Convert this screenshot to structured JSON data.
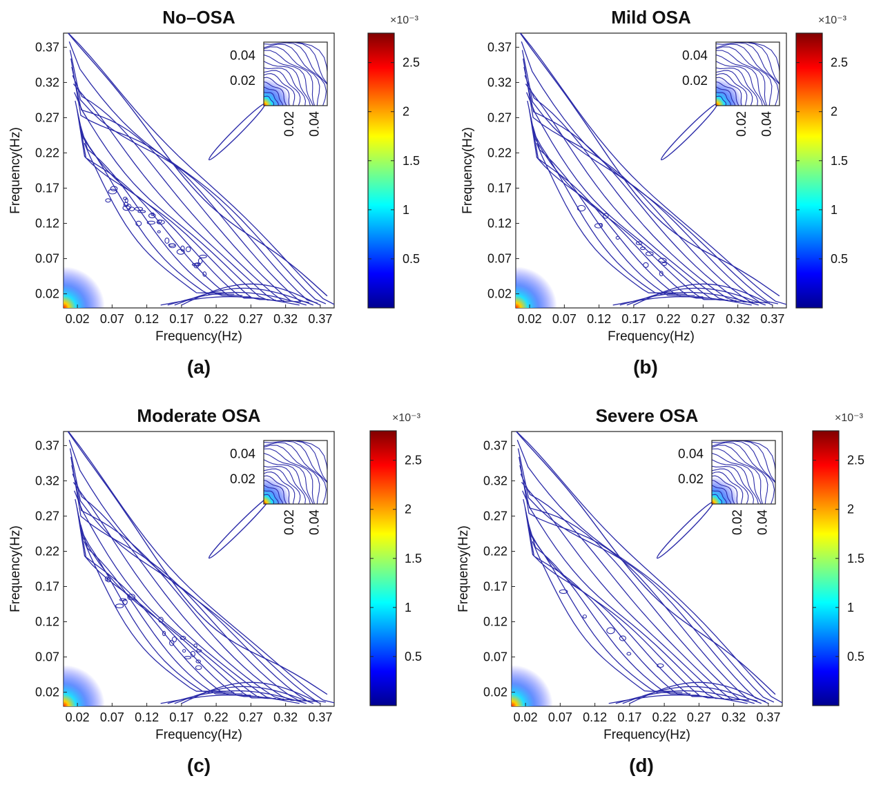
{
  "chart_data": [
    {
      "type": "heatmap",
      "panel": "a",
      "title": "No–OSA",
      "caption": "(a)",
      "xlabel": "Frequency(Hz)",
      "ylabel": "Frequency(Hz)",
      "xticks": [
        "0.02",
        "0.07",
        "0.12",
        "0.17",
        "0.22",
        "0.27",
        "0.32",
        "0.37"
      ],
      "yticks": [
        "0.02",
        "0.07",
        "0.12",
        "0.17",
        "0.22",
        "0.27",
        "0.32",
        "0.37"
      ],
      "xlim": [
        0,
        0.39
      ],
      "ylim": [
        0,
        0.39
      ],
      "inset": {
        "xticks": [
          "0.02",
          "0.04"
        ],
        "yticks": [
          "0.02",
          "0.04"
        ],
        "lim": [
          0,
          0.05
        ]
      },
      "colorbar": {
        "ticks": [
          "0.5",
          "1",
          "1.5",
          "2",
          "2.5"
        ],
        "range": [
          0,
          2.8
        ],
        "exponent_label": "×10⁻³"
      },
      "features": {
        "bulge": 0.15,
        "ridge_end": 0.29,
        "blobs": 30
      }
    },
    {
      "type": "heatmap",
      "panel": "b",
      "title": "Mild OSA",
      "caption": "(b)",
      "xlabel": "Frequency(Hz)",
      "ylabel": "Frequency(Hz)",
      "xticks": [
        "0.02",
        "0.07",
        "0.12",
        "0.17",
        "0.22",
        "0.27",
        "0.32",
        "0.37"
      ],
      "yticks": [
        "0.02",
        "0.07",
        "0.12",
        "0.17",
        "0.22",
        "0.27",
        "0.32",
        "0.37"
      ],
      "xlim": [
        0,
        0.39
      ],
      "ylim": [
        0,
        0.39
      ],
      "inset": {
        "xticks": [
          "0.02",
          "0.04"
        ],
        "yticks": [
          "0.02",
          "0.04"
        ],
        "lim": [
          0,
          0.05
        ]
      },
      "colorbar": {
        "ticks": [
          "0.5",
          "1",
          "1.5",
          "2",
          "2.5"
        ],
        "range": [
          0,
          2.8
        ],
        "exponent_label": "×10⁻³"
      },
      "features": {
        "bulge": 0.1,
        "ridge_end": 0.29,
        "blobs": 12
      }
    },
    {
      "type": "heatmap",
      "panel": "c",
      "title": "Moderate OSA",
      "caption": "(c)",
      "xlabel": "Frequency(Hz)",
      "ylabel": "Frequency(Hz)",
      "xticks": [
        "0.02",
        "0.07",
        "0.12",
        "0.17",
        "0.22",
        "0.27",
        "0.32",
        "0.37"
      ],
      "yticks": [
        "0.02",
        "0.07",
        "0.12",
        "0.17",
        "0.22",
        "0.27",
        "0.32",
        "0.37"
      ],
      "xlim": [
        0,
        0.39
      ],
      "ylim": [
        0,
        0.39
      ],
      "inset": {
        "xticks": [
          "0.02",
          "0.04"
        ],
        "yticks": [
          "0.02",
          "0.04"
        ],
        "lim": [
          0,
          0.05
        ]
      },
      "colorbar": {
        "ticks": [
          "0.5",
          "1",
          "1.5",
          "2",
          "2.5"
        ],
        "range": [
          0,
          2.8
        ],
        "exponent_label": "×10⁻³"
      },
      "features": {
        "bulge": 0.09,
        "ridge_end": 0.3,
        "blobs": 18
      }
    },
    {
      "type": "heatmap",
      "panel": "d",
      "title": "Severe OSA",
      "caption": "(d)",
      "xlabel": "Frequency(Hz)",
      "ylabel": "Frequency(Hz)",
      "xticks": [
        "0.02",
        "0.07",
        "0.12",
        "0.17",
        "0.22",
        "0.27",
        "0.32",
        "0.37"
      ],
      "yticks": [
        "0.02",
        "0.07",
        "0.12",
        "0.17",
        "0.22",
        "0.27",
        "0.32",
        "0.37"
      ],
      "xlim": [
        0,
        0.39
      ],
      "ylim": [
        0,
        0.39
      ],
      "inset": {
        "xticks": [
          "0.02",
          "0.04"
        ],
        "yticks": [
          "0.02",
          "0.04"
        ],
        "lim": [
          0,
          0.05
        ]
      },
      "colorbar": {
        "ticks": [
          "0.5",
          "1",
          "1.5",
          "2",
          "2.5"
        ],
        "range": [
          0,
          2.8
        ],
        "exponent_label": "×10⁻³"
      },
      "features": {
        "bulge": 0.16,
        "ridge_end": 0.29,
        "blobs": 6
      }
    }
  ]
}
